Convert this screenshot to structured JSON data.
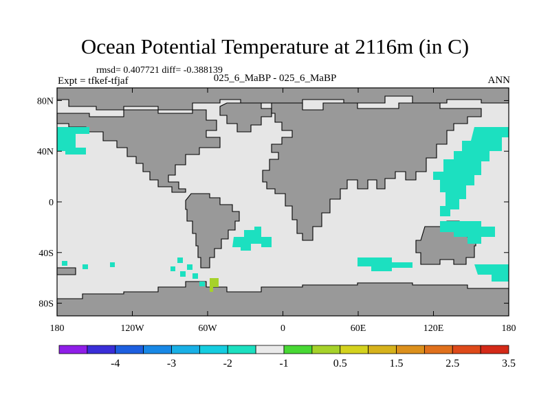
{
  "title": "Ocean Potential Temperature at 2116m (in C)",
  "stats": "rmsd= 0.407721 diff= -0.388139",
  "experiment": "Expt = tfkef-tfjaf",
  "case_label": "025_6_MaBP - 025_6_MaBP",
  "season": "ANN",
  "map": {
    "lon_range": [
      -180,
      180
    ],
    "lat_range": [
      -90,
      90
    ],
    "x_ticks": [
      {
        "lon": -180,
        "label": "180"
      },
      {
        "lon": -120,
        "label": "120W"
      },
      {
        "lon": -60,
        "label": "60W"
      },
      {
        "lon": 0,
        "label": "0"
      },
      {
        "lon": 60,
        "label": "60E"
      },
      {
        "lon": 120,
        "label": "120E"
      },
      {
        "lon": 180,
        "label": "180"
      }
    ],
    "y_ticks": [
      {
        "lat": 80,
        "label": "80N"
      },
      {
        "lat": 40,
        "label": "40N"
      },
      {
        "lat": 0,
        "label": "0"
      },
      {
        "lat": -40,
        "label": "40S"
      },
      {
        "lat": -80,
        "label": "80S"
      }
    ],
    "ocean_color": "#e6e6e6",
    "land_color": "#999999"
  },
  "colorbar": {
    "colors": [
      "#8f1ee8",
      "#3a2ed8",
      "#1d5fe0",
      "#1888e6",
      "#19b0e6",
      "#15cde0",
      "#1ce0c0",
      "#eaeaea",
      "#48d834",
      "#a6d22a",
      "#d4d21e",
      "#d6b21c",
      "#dc901c",
      "#e0701c",
      "#de4a1a",
      "#d42a18"
    ],
    "labels": [
      "-4",
      "-3",
      "-2",
      "-1",
      "0.5",
      "1.5",
      "2.5",
      "3.5"
    ]
  }
}
